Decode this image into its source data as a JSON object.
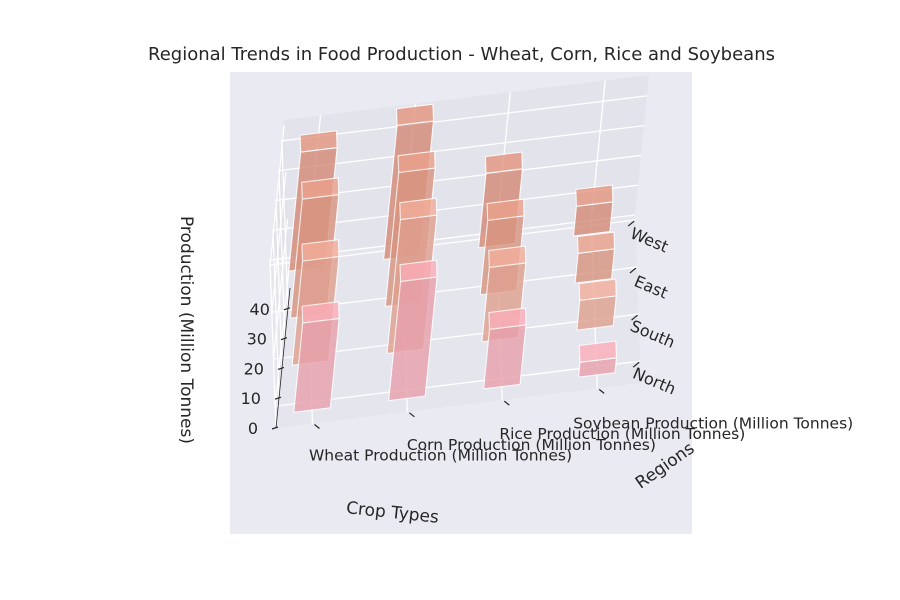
{
  "chart_data": {
    "type": "bar3d",
    "title": "Regional Trends in Food Production - Wheat, Corn, Rice and Soybeans",
    "xlabel": "Crop Types",
    "ylabel": "Regions",
    "zlabel": "Production (Million Tonnes)",
    "categories": [
      "Wheat Production (Million Tonnes)",
      "Corn Production (Million Tonnes)",
      "Rice Production (Million Tonnes)",
      "Soybean Production (Million Tonnes)"
    ],
    "regions": [
      "North",
      "South",
      "East",
      "West"
    ],
    "zticks": [
      0,
      10,
      20,
      30,
      40
    ],
    "zlim": [
      0,
      47
    ],
    "bar_color": "#e8a0ab",
    "series": [
      {
        "name": "North",
        "values": [
          30,
          40,
          20,
          5
        ]
      },
      {
        "name": "South",
        "values": [
          35,
          45,
          25,
          10
        ]
      },
      {
        "name": "East",
        "values": [
          40,
          45,
          25,
          10
        ]
      },
      {
        "name": "West",
        "values": [
          40,
          45,
          25,
          10
        ]
      }
    ]
  }
}
